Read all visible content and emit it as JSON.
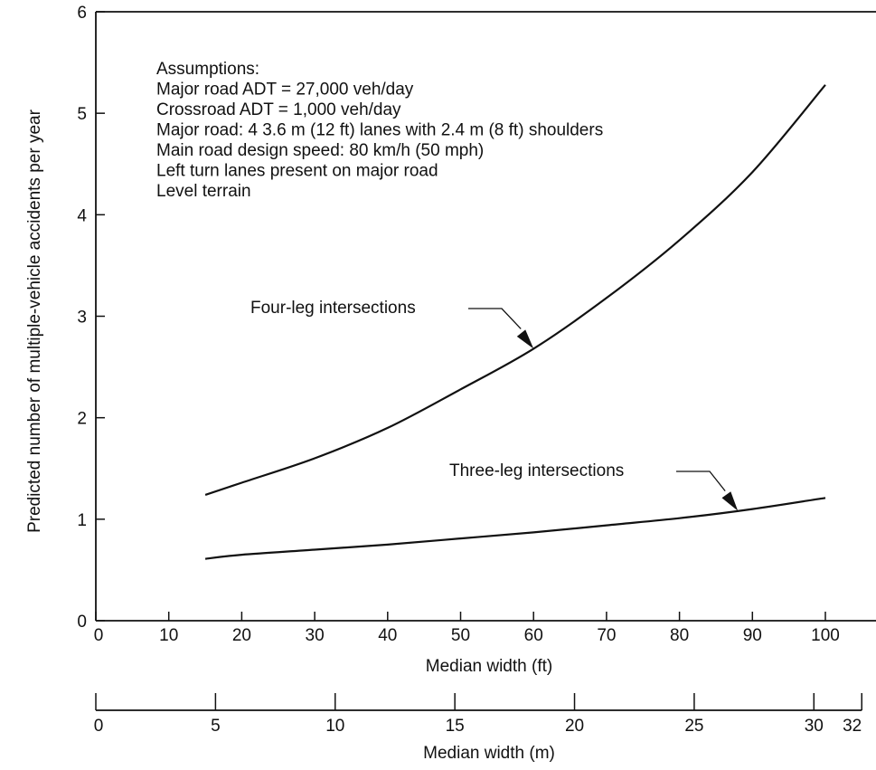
{
  "chart_data": {
    "type": "line",
    "xlabel": "Median width (ft)",
    "x2label": "Median width (m)",
    "ylabel": "Predicted number of multiple-vehicle accidents per year",
    "xlim": [
      0,
      105
    ],
    "ylim": [
      0,
      6
    ],
    "x_ticks": [
      0,
      10,
      20,
      30,
      40,
      50,
      60,
      70,
      80,
      90,
      100
    ],
    "y_ticks": [
      0,
      1,
      2,
      3,
      4,
      5,
      6
    ],
    "x2_ticks": [
      0,
      5,
      10,
      15,
      20,
      25,
      30,
      32
    ],
    "grid": false,
    "annotations": {
      "title": "Assumptions:",
      "lines": [
        "Major road ADT = 27,000 veh/day",
        "Crossroad ADT = 1,000 veh/day",
        "Major road: 4 3.6 m (12 ft) lanes with 2.4 m (8 ft) shoulders",
        "Main road design speed:  80 km/h (50 mph)",
        "Left turn lanes present on major road",
        "Level terrain"
      ]
    },
    "series": [
      {
        "name": "Four-leg intersections",
        "x": [
          15,
          20,
          30,
          40,
          50,
          60,
          70,
          80,
          90,
          100
        ],
        "y": [
          1.24,
          1.36,
          1.6,
          1.9,
          2.28,
          2.68,
          3.18,
          3.75,
          4.42,
          5.28
        ]
      },
      {
        "name": "Three-leg intersections",
        "x": [
          15,
          20,
          30,
          40,
          50,
          60,
          70,
          80,
          90,
          100
        ],
        "y": [
          0.61,
          0.65,
          0.7,
          0.75,
          0.81,
          0.87,
          0.94,
          1.01,
          1.1,
          1.21
        ]
      }
    ]
  }
}
